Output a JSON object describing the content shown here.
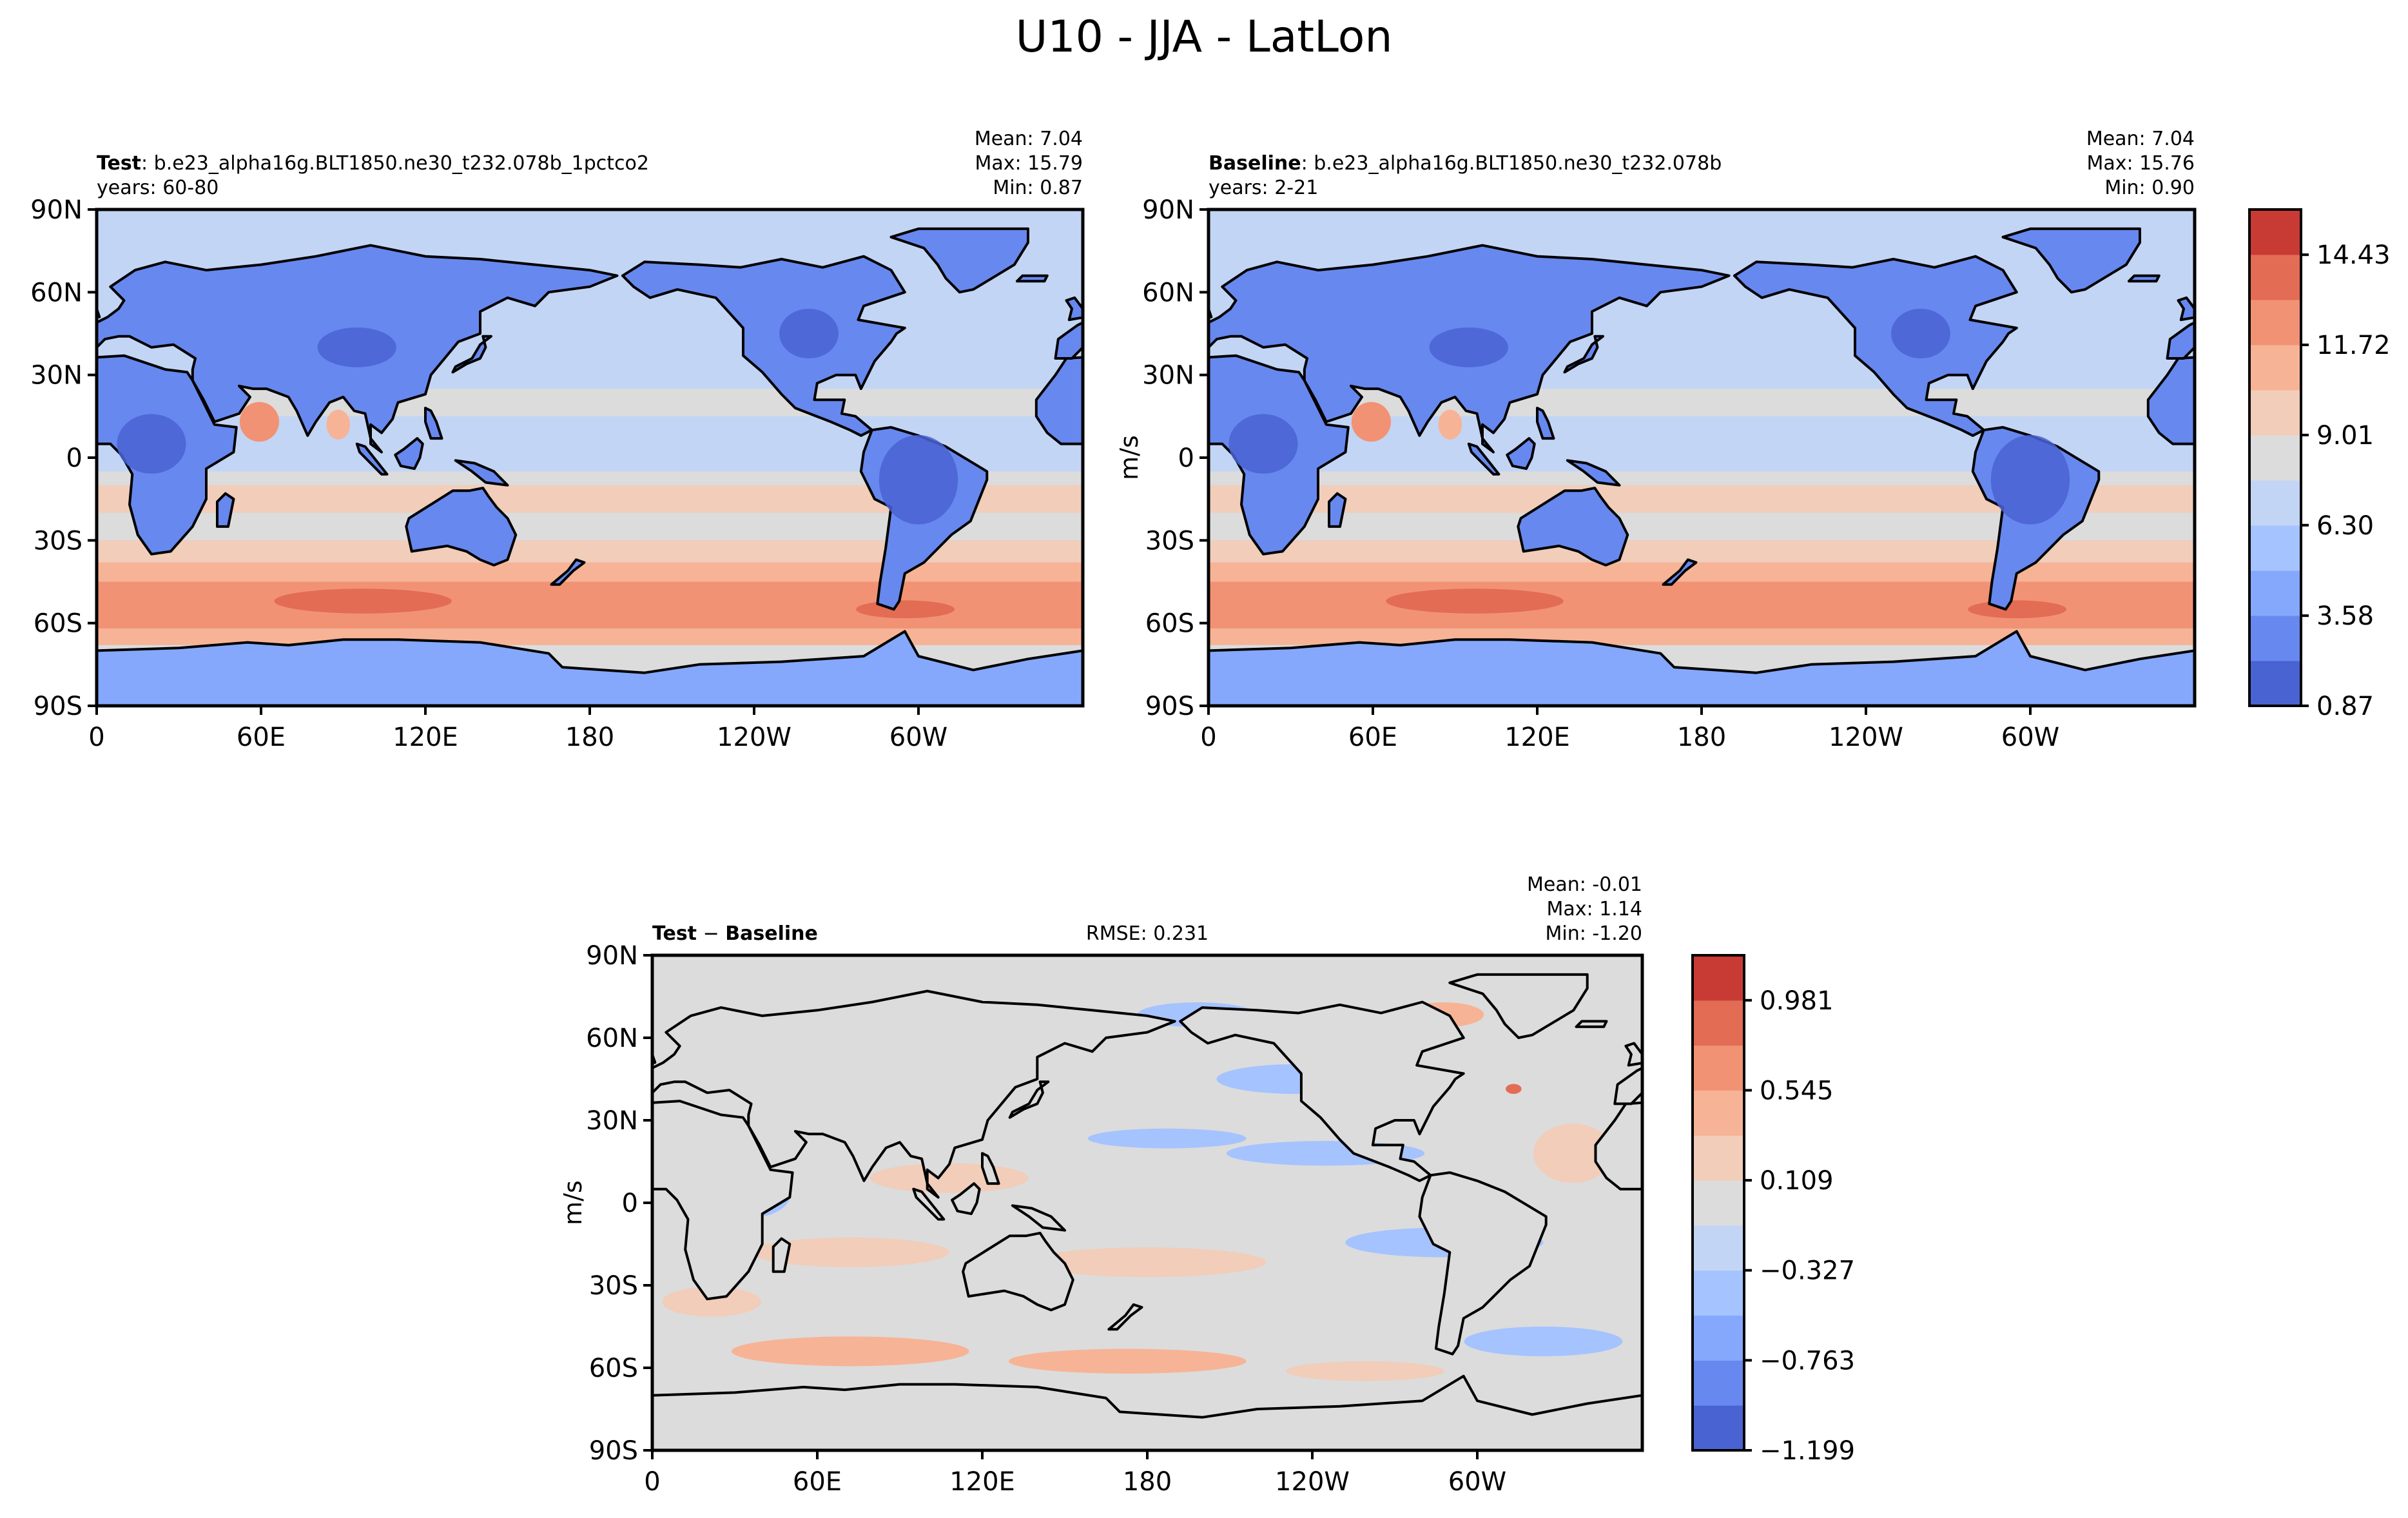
{
  "title": "U10 - JJA - LatLon",
  "colors": {
    "ocean_fill": "#dcdcdc",
    "coastline": "#000000",
    "coolwarm": [
      "#4a63d3",
      "#6788ee",
      "#85a8fc",
      "#a5c3fe",
      "#c3d5f4",
      "#dcdcdc",
      "#f1cdba",
      "#f7b396",
      "#f29274",
      "#e36c55",
      "#c83b34"
    ]
  },
  "chart_data": [
    {
      "type": "heatmap",
      "panel": "test",
      "label_bold": "Test",
      "label_text": ": b.e23_alpha16g.BLT1850.ne30_t232.078b_1pctco2",
      "years": "years: 60-80",
      "stats": {
        "mean": "Mean:  7.04",
        "max": "Max: 15.79",
        "min": "Min:  0.87"
      },
      "xticks": [
        "0",
        "60E",
        "120E",
        "180",
        "120W",
        "60W"
      ],
      "xtick_values": [
        0,
        60,
        120,
        180,
        240,
        300
      ],
      "yticks": [
        "90N",
        "60N",
        "30N",
        "0",
        "30S",
        "60S",
        "90S"
      ],
      "ytick_values": [
        90,
        60,
        30,
        0,
        -30,
        -60,
        -90
      ],
      "xlim": [
        0,
        360
      ],
      "ylim": [
        -90,
        90
      ],
      "units": "m/s"
    },
    {
      "type": "heatmap",
      "panel": "baseline",
      "label_bold": "Baseline",
      "label_text": ": b.e23_alpha16g.BLT1850.ne30_t232.078b",
      "years": "years: 2-21",
      "stats": {
        "mean": "Mean:  7.04",
        "max": "Max: 15.76",
        "min": "Min:  0.90"
      },
      "xticks": [
        "0",
        "60E",
        "120E",
        "180",
        "120W",
        "60W"
      ],
      "xtick_values": [
        0,
        60,
        120,
        180,
        240,
        300
      ],
      "yticks": [
        "90N",
        "60N",
        "30N",
        "0",
        "30S",
        "60S",
        "90S"
      ],
      "ytick_values": [
        90,
        60,
        30,
        0,
        -30,
        -60,
        -90
      ],
      "xlim": [
        0,
        360
      ],
      "ylim": [
        -90,
        90
      ],
      "ylabel": "m/s",
      "colorbar": {
        "ticks": [
          "14.43",
          "11.72",
          "9.01",
          "6.30",
          "3.58",
          "0.87"
        ],
        "tick_values": [
          14.43,
          11.72,
          9.01,
          6.3,
          3.58,
          0.87
        ],
        "range": [
          0.87,
          15.79
        ]
      }
    },
    {
      "type": "heatmap",
      "panel": "difference",
      "label_bold_a": "Test",
      "label_sep": " − ",
      "label_bold_b": "Baseline",
      "rmse": "RMSE: 0.231",
      "stats": {
        "mean": "Mean: -0.01",
        "max": "Max:  1.14",
        "min": "Min: -1.20"
      },
      "xticks": [
        "0",
        "60E",
        "120E",
        "180",
        "120W",
        "60W"
      ],
      "xtick_values": [
        0,
        60,
        120,
        180,
        240,
        300
      ],
      "yticks": [
        "90N",
        "60N",
        "30N",
        "0",
        "30S",
        "60S",
        "90S"
      ],
      "ytick_values": [
        90,
        60,
        30,
        0,
        -30,
        -60,
        -90
      ],
      "xlim": [
        0,
        360
      ],
      "ylim": [
        -90,
        90
      ],
      "ylabel": "m/s",
      "colorbar": {
        "ticks": [
          "0.981",
          "0.545",
          "0.109",
          "−0.327",
          "−0.763",
          "−1.199"
        ],
        "tick_values": [
          0.981,
          0.545,
          0.109,
          -0.327,
          -0.763,
          -1.199
        ],
        "range": [
          -1.199,
          1.199
        ]
      }
    }
  ]
}
